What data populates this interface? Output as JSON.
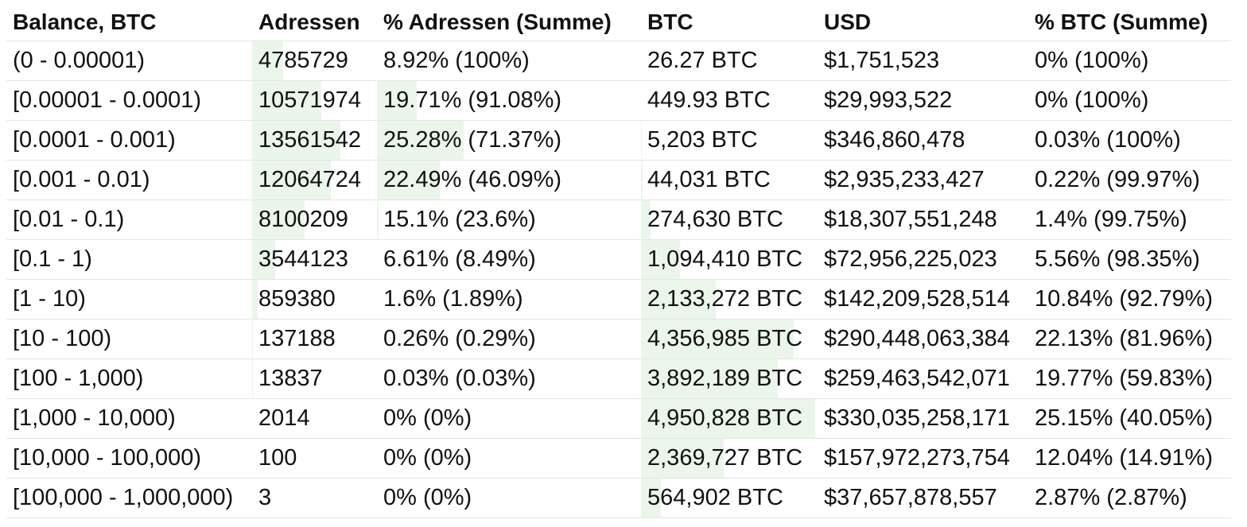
{
  "columns": [
    "Balance, BTC",
    "Adressen",
    "% Adressen (Summe)",
    "BTC",
    "USD",
    "% BTC (Summe)"
  ],
  "rows": [
    {
      "range": "(0 - 0.00001)",
      "addresses": "4785729",
      "addr_pct": "8.92% (100%)",
      "btc": "26.27 BTC",
      "usd": "$1,751,523",
      "btc_pct": "0% (100%)",
      "addr_share": 0.089,
      "btc_share": 0.0
    },
    {
      "range": "[0.00001 - 0.0001)",
      "addresses": "10571974",
      "addr_pct": "19.71% (91.08%)",
      "btc": "449.93 BTC",
      "usd": "$29,993,522",
      "btc_pct": "0% (100%)",
      "addr_share": 0.197,
      "btc_share": 0.0
    },
    {
      "range": "[0.0001 - 0.001)",
      "addresses": "13561542",
      "addr_pct": "25.28% (71.37%)",
      "btc": "5,203 BTC",
      "usd": "$346,860,478",
      "btc_pct": "0.03% (100%)",
      "addr_share": 0.253,
      "btc_share": 0.0003
    },
    {
      "range": "[0.001 - 0.01)",
      "addresses": "12064724",
      "addr_pct": "22.49% (46.09%)",
      "btc": "44,031 BTC",
      "usd": "$2,935,233,427",
      "btc_pct": "0.22% (99.97%)",
      "addr_share": 0.225,
      "btc_share": 0.0022
    },
    {
      "range": "[0.01 - 0.1)",
      "addresses": "8100209",
      "addr_pct": "15.1% (23.6%)",
      "btc": "274,630 BTC",
      "usd": "$18,307,551,248",
      "btc_pct": "1.4% (99.75%)",
      "addr_share": 0.151,
      "btc_share": 0.014
    },
    {
      "range": "[0.1 - 1)",
      "addresses": "3544123",
      "addr_pct": "6.61% (8.49%)",
      "btc": "1,094,410 BTC",
      "usd": "$72,956,225,023",
      "btc_pct": "5.56% (98.35%)",
      "addr_share": 0.066,
      "btc_share": 0.056
    },
    {
      "range": "[1 - 10)",
      "addresses": "859380",
      "addr_pct": "1.6% (1.89%)",
      "btc": "2,133,272 BTC",
      "usd": "$142,209,528,514",
      "btc_pct": "10.84% (92.79%)",
      "addr_share": 0.016,
      "btc_share": 0.108
    },
    {
      "range": "[10 - 100)",
      "addresses": "137188",
      "addr_pct": "0.26% (0.29%)",
      "btc": "4,356,985 BTC",
      "usd": "$290,448,063,384",
      "btc_pct": "22.13% (81.96%)",
      "addr_share": 0.0026,
      "btc_share": 0.221
    },
    {
      "range": "[100 - 1,000)",
      "addresses": "13837",
      "addr_pct": "0.03% (0.03%)",
      "btc": "3,892,189 BTC",
      "usd": "$259,463,542,071",
      "btc_pct": "19.77% (59.83%)",
      "addr_share": 0.0003,
      "btc_share": 0.198
    },
    {
      "range": "[1,000 - 10,000)",
      "addresses": "2014",
      "addr_pct": "0% (0%)",
      "btc": "4,950,828 BTC",
      "usd": "$330,035,258,171",
      "btc_pct": "25.15% (40.05%)",
      "addr_share": 0.0,
      "btc_share": 0.252
    },
    {
      "range": "[10,000 - 100,000)",
      "addresses": "100",
      "addr_pct": "0% (0%)",
      "btc": "2,369,727 BTC",
      "usd": "$157,972,273,754",
      "btc_pct": "12.04% (14.91%)",
      "addr_share": 0.0,
      "btc_share": 0.12
    },
    {
      "range": "[100,000 - 1,000,000)",
      "addresses": "3",
      "addr_pct": "0% (0%)",
      "btc": "564,902 BTC",
      "usd": "$37,657,878,557",
      "btc_pct": "2.87% (2.87%)",
      "addr_share": 0.0,
      "btc_share": 0.029
    }
  ],
  "colors": {
    "bar": "#eaf6ea",
    "divider": "#e4e4e4",
    "text": "#111111"
  }
}
